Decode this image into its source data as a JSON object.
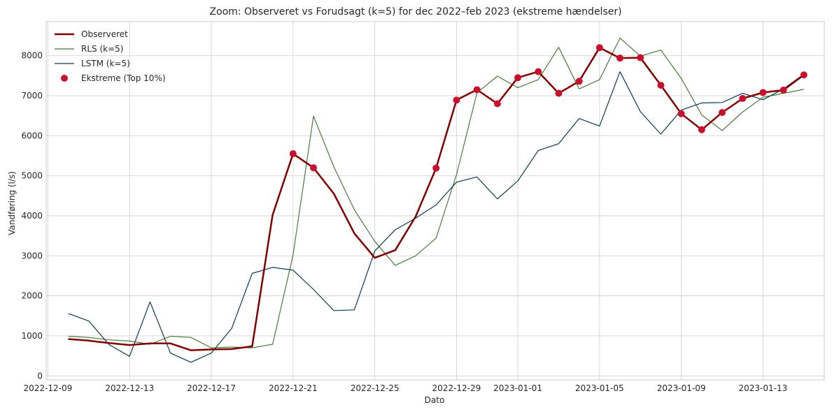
{
  "chart_data": {
    "type": "line",
    "title": "Zoom: Observeret vs Forudsagt (k=5) for dec 2022–feb 2023 (ekstreme hændelser)",
    "xlabel": "Dato",
    "ylabel": "Vandføring (l/s)",
    "x_tick_labels": [
      "2022-12-09",
      "2022-12-13",
      "2022-12-17",
      "2022-12-21",
      "2022-12-25",
      "2022-12-29",
      "2023-01-01",
      "2023-01-05",
      "2023-01-09",
      "2023-01-13"
    ],
    "y_tick_labels": [
      "0",
      "1000",
      "2000",
      "3000",
      "4000",
      "5000",
      "6000",
      "7000",
      "8000"
    ],
    "ylim": [
      -100,
      8850
    ],
    "xlim": [
      "2022-12-08T22:00",
      "2023-01-16T00:00"
    ],
    "grid": true,
    "legend_position": "top-left",
    "x": [
      "2022-12-10",
      "2022-12-11",
      "2022-12-12",
      "2022-12-13",
      "2022-12-14",
      "2022-12-15",
      "2022-12-16",
      "2022-12-17",
      "2022-12-18",
      "2022-12-19",
      "2022-12-20",
      "2022-12-21",
      "2022-12-22",
      "2022-12-23",
      "2022-12-24",
      "2022-12-25",
      "2022-12-26",
      "2022-12-27",
      "2022-12-28",
      "2022-12-29",
      "2022-12-30",
      "2022-12-31",
      "2023-01-01",
      "2023-01-02",
      "2023-01-03",
      "2023-01-04",
      "2023-01-05",
      "2023-01-06",
      "2023-01-07",
      "2023-01-08",
      "2023-01-09",
      "2023-01-10",
      "2023-01-11",
      "2023-01-12",
      "2023-01-13",
      "2023-01-14",
      "2023-01-15"
    ],
    "series": [
      {
        "name": "Observeret",
        "color": "#800000",
        "width": 2.5,
        "values": [
          920,
          880,
          820,
          770,
          810,
          810,
          640,
          660,
          670,
          740,
          4020,
          5550,
          5200,
          4550,
          3560,
          2950,
          3140,
          3980,
          5190,
          6890,
          7150,
          6800,
          7450,
          7600,
          7060,
          7360,
          8200,
          7940,
          7950,
          7260,
          6550,
          6150,
          6580,
          6930,
          7080,
          7140,
          7520
        ]
      },
      {
        "name": "RLS (k=5)",
        "color": "#4a7a3a",
        "width": 1.2,
        "values": [
          990,
          960,
          900,
          870,
          790,
          990,
          960,
          700,
          720,
          700,
          790,
          3020,
          6490,
          5220,
          4150,
          3360,
          2760,
          3000,
          3440,
          5030,
          7070,
          7490,
          7200,
          7400,
          8210,
          7170,
          7400,
          8440,
          7990,
          8140,
          7430,
          6520,
          6130,
          6590,
          6960,
          7060,
          7160
        ]
      },
      {
        "name": "LSTM (k=5)",
        "color": "#0b3954",
        "width": 1.2,
        "values": [
          1560,
          1370,
          780,
          490,
          1850,
          570,
          340,
          570,
          1190,
          2560,
          2710,
          2640,
          2160,
          1630,
          1650,
          3120,
          3650,
          3940,
          4270,
          4840,
          4970,
          4420,
          4870,
          5630,
          5800,
          6430,
          6240,
          7600,
          6600,
          6040,
          6640,
          6820,
          6830,
          7060,
          6900,
          7170,
          7540
        ]
      }
    ],
    "extremes": {
      "name": "Ekstreme (Top 10%)",
      "color": "#c8102e",
      "x": [
        "2022-12-21",
        "2022-12-22",
        "2022-12-28",
        "2022-12-29",
        "2022-12-30",
        "2022-12-31",
        "2023-01-01",
        "2023-01-02",
        "2023-01-03",
        "2023-01-04",
        "2023-01-05",
        "2023-01-06",
        "2023-01-07",
        "2023-01-08",
        "2023-01-09",
        "2023-01-10",
        "2023-01-11",
        "2023-01-12",
        "2023-01-13",
        "2023-01-14",
        "2023-01-15"
      ],
      "values": [
        5550,
        5200,
        5190,
        6890,
        7150,
        6800,
        7450,
        7600,
        7060,
        7360,
        8200,
        7940,
        7950,
        7260,
        6550,
        6150,
        6580,
        6930,
        7080,
        7140,
        7520
      ]
    }
  }
}
